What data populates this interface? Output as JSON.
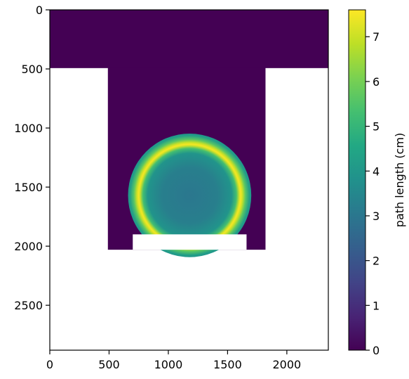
{
  "chart_data": {
    "type": "heatmap",
    "title": "",
    "xlabel": "",
    "ylabel": "",
    "x_ticks": [
      "0",
      "500",
      "1000",
      "1500",
      "2000"
    ],
    "y_ticks": [
      "0",
      "500",
      "1000",
      "1500",
      "2000",
      "2500"
    ],
    "x_tick_values": [
      0,
      500,
      1000,
      1500,
      2000
    ],
    "y_tick_values": [
      0,
      500,
      1000,
      1500,
      2000,
      2500
    ],
    "xlim": [
      0,
      2350
    ],
    "ylim": [
      2880,
      0
    ],
    "colormap": "viridis",
    "colorbar": {
      "label": "path length (cm)",
      "ticks": [
        "0",
        "1",
        "2",
        "3",
        "4",
        "5",
        "6",
        "7"
      ],
      "tick_values": [
        0,
        1,
        2,
        3,
        4,
        5,
        6,
        7
      ],
      "range": [
        0,
        7.6
      ]
    },
    "regions": [
      {
        "name": "top-slab",
        "x": [
          0,
          2350
        ],
        "y": [
          0,
          490
        ],
        "value": 0
      },
      {
        "name": "middle-column",
        "x": [
          490,
          1820
        ],
        "y": [
          490,
          2030
        ],
        "value": 0
      },
      {
        "name": "sphere",
        "center_x": 1180,
        "center_y": 1570,
        "radius": 520,
        "center_value": 3.0,
        "peak_value": 7.5,
        "shell_radius": 430,
        "edge_value": 4.2
      },
      {
        "name": "white-cutout",
        "x": [
          700,
          1660
        ],
        "y": [
          1900,
          2030
        ],
        "value": null
      }
    ]
  },
  "colors": {
    "viridis_stops": [
      "#440154",
      "#482475",
      "#414487",
      "#355f8d",
      "#2a788e",
      "#21918c",
      "#22a884",
      "#44bf70",
      "#7ad151",
      "#bddf26",
      "#fde725"
    ]
  }
}
